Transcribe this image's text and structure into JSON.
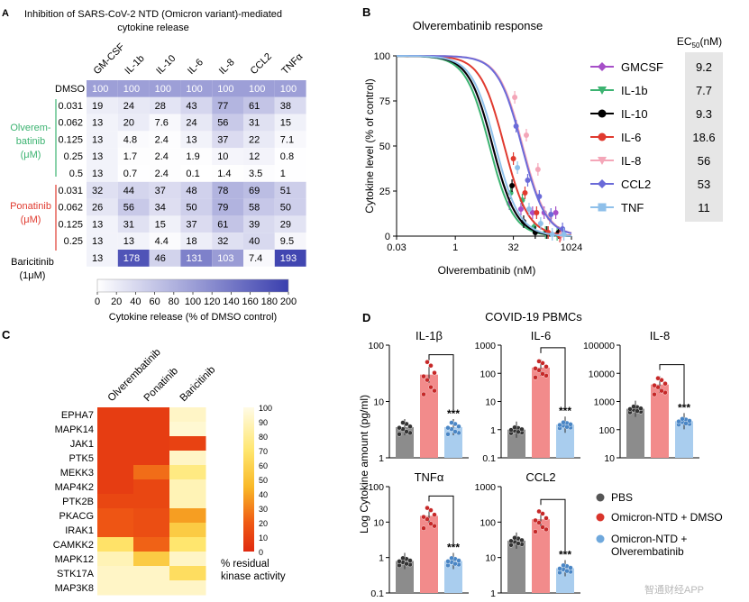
{
  "panels": {
    "A": {
      "letter": "A",
      "title_line1": "Inhibition of SARS-CoV-2 NTD (Omicron variant)-mediated",
      "title_line2": "cytokine release",
      "columns": [
        "GM-CSF",
        "IL-1b",
        "IL-10",
        "IL-6",
        "IL-8",
        "CCL2",
        "TNFα"
      ],
      "rows": [
        {
          "group": "DMSO",
          "conc": "",
          "values": [
            100,
            100,
            100,
            100,
            100,
            100,
            100
          ]
        },
        {
          "group": "Olverembatinib",
          "conc": "0.031",
          "values": [
            19,
            24,
            28,
            43,
            77,
            61,
            38
          ]
        },
        {
          "group": "Olverembatinib",
          "conc": "0.062",
          "values": [
            13,
            20,
            7.6,
            24,
            56,
            31,
            15
          ]
        },
        {
          "group": "Olverembatinib",
          "conc": "0.125",
          "values": [
            13,
            4.8,
            2.4,
            13,
            37,
            22,
            7.1
          ]
        },
        {
          "group": "Olverembatinib",
          "conc": "0.25",
          "values": [
            13,
            1.7,
            2.4,
            1.9,
            10,
            12,
            0.8
          ]
        },
        {
          "group": "Olverembatinib",
          "conc": "0.5",
          "values": [
            13,
            0.7,
            2.4,
            0.1,
            1.4,
            3.5,
            1.0
          ]
        },
        {
          "group": "Ponatinib",
          "conc": "0.031",
          "values": [
            32,
            44,
            37,
            48,
            78,
            69,
            51
          ]
        },
        {
          "group": "Ponatinib",
          "conc": "0.062",
          "values": [
            26,
            56,
            34,
            50,
            79,
            58,
            50
          ]
        },
        {
          "group": "Ponatinib",
          "conc": "0.125",
          "values": [
            13,
            31,
            15,
            37,
            61,
            39,
            29
          ]
        },
        {
          "group": "Ponatinib",
          "conc": "0.25",
          "values": [
            13,
            13,
            4.4,
            18,
            32,
            40,
            9.5
          ]
        },
        {
          "group": "Baricitinib",
          "conc": "",
          "values": [
            13,
            178,
            46,
            131,
            103,
            7.4,
            193
          ]
        }
      ],
      "row_labels": {
        "dmso": "DMSO",
        "olver_1": "Olverem-",
        "olver_2": "batinib",
        "olver_3": "(μM)",
        "pona_1": "Ponatinib",
        "pona_2": "(μM)",
        "bari_1": "Baricitinib",
        "bari_2": "(1μM)"
      },
      "colorbar": {
        "ticks": [
          "0",
          "20",
          "40",
          "60",
          "80",
          "100",
          "120",
          "140",
          "160",
          "180",
          "200"
        ],
        "label": "Cytokine release (% of DMSO control)"
      },
      "colors": {
        "olver": "#3cb371",
        "pona": "#e03a2f",
        "scale_max": "#3a3fae"
      }
    },
    "B": {
      "letter": "B",
      "title": "Olverembatinib response",
      "xlabel": "Olverembatinib (nM)",
      "ylabel": "Cytokine level (% of control)",
      "xticks": [
        "0.03",
        "1",
        "32",
        "1024"
      ],
      "yticks": [
        "0",
        "25",
        "50",
        "75",
        "100"
      ],
      "ec50_header": "EC50 (nM)",
      "ec50_main": "EC",
      "ec50_sub": "50",
      "ec50_unit": "(nM)"
    },
    "C": {
      "letter": "C",
      "columns": [
        "Olverembatinib",
        "Ponatinib",
        "Baricitinib"
      ],
      "rows": [
        "EPHA7",
        "MAPK14",
        "JAK1",
        "PTK5",
        "MEKK3",
        "MAP4K2",
        "PTK2B",
        "PKACG",
        "IRAK1",
        "CAMKK2",
        "MAPK12",
        "STK17A",
        "MAP3K8"
      ],
      "colorbar_ticks": [
        "100",
        "90",
        "80",
        "70",
        "60",
        "50",
        "40",
        "30",
        "20",
        "10",
        "0"
      ],
      "colorbar_label_1": "% residual",
      "colorbar_label_2": "kinase activity"
    },
    "D": {
      "letter": "D",
      "title": "COVID-19 PBMCs",
      "ylabel": "Log Cytokine amount (pg/ml)",
      "stars": "***",
      "legend": [
        {
          "label": "PBS",
          "color": "#555555"
        },
        {
          "label": "Omicron-NTD + DMSO",
          "color": "#d9342b"
        },
        {
          "label": "Omicron-NTD +",
          "label2": "Olverembatinib",
          "color": "#6fa8dc"
        }
      ],
      "subplots": [
        {
          "name": "IL-1β",
          "yticks": [
            "1",
            "10",
            "100"
          ]
        },
        {
          "name": "IL-6",
          "yticks": [
            "0.1",
            "1",
            "10",
            "100",
            "1000"
          ]
        },
        {
          "name": "IL-8",
          "yticks": [
            "10",
            "100",
            "1000",
            "10000",
            "100000"
          ]
        },
        {
          "name": "TNFα",
          "yticks": [
            "0.1",
            "1",
            "10",
            "100"
          ]
        },
        {
          "name": "CCL2",
          "yticks": [
            "1",
            "10",
            "100",
            "1000"
          ]
        }
      ]
    }
  },
  "watermark": "智通财经APP",
  "chart_data": [
    {
      "type": "heatmap",
      "panel": "A",
      "title": "Inhibition of SARS-CoV-2 NTD (Omicron variant)-mediated cytokine release",
      "x": [
        "GM-CSF",
        "IL-1b",
        "IL-10",
        "IL-6",
        "IL-8",
        "CCL2",
        "TNFα"
      ],
      "y": [
        "DMSO",
        "Olverembatinib 0.031",
        "Olverembatinib 0.062",
        "Olverembatinib 0.125",
        "Olverembatinib 0.25",
        "Olverembatinib 0.5",
        "Ponatinib 0.031",
        "Ponatinib 0.062",
        "Ponatinib 0.125",
        "Ponatinib 0.25",
        "Baricitinib 1μM"
      ],
      "values": [
        [
          100,
          100,
          100,
          100,
          100,
          100,
          100
        ],
        [
          19,
          24,
          28,
          43,
          77,
          61,
          38
        ],
        [
          13,
          20,
          7.6,
          24,
          56,
          31,
          15
        ],
        [
          13,
          4.8,
          2.4,
          13,
          37,
          22,
          7.1
        ],
        [
          13,
          1.7,
          2.4,
          1.9,
          10,
          12,
          0.8
        ],
        [
          13,
          0.7,
          2.4,
          0.1,
          1.4,
          3.5,
          1.0
        ],
        [
          32,
          44,
          37,
          48,
          78,
          69,
          51
        ],
        [
          26,
          56,
          34,
          50,
          79,
          58,
          50
        ],
        [
          13,
          31,
          15,
          37,
          61,
          39,
          29
        ],
        [
          13,
          13,
          4.4,
          18,
          32,
          40,
          9.5
        ],
        [
          13,
          178,
          46,
          131,
          103,
          7.4,
          193
        ]
      ],
      "scale": [
        0,
        200
      ]
    },
    {
      "type": "line",
      "panel": "B",
      "title": "Olverembatinib response",
      "xlabel": "Olverembatinib (nM)",
      "ylabel": "Cytokine level (% of control)",
      "xscale": "log2",
      "xlim": [
        0.03,
        1024
      ],
      "ylim": [
        0,
        100
      ],
      "series": [
        {
          "name": "GMCSF",
          "ec50": 9.2,
          "color": "#a64fc8",
          "points": [
            [
              32,
              18
            ],
            [
              64,
              15
            ],
            [
              128,
              13
            ],
            [
              256,
              13
            ],
            [
              512,
              13
            ]
          ]
        },
        {
          "name": "IL-1b",
          "ec50": 7.7,
          "color": "#3cb371",
          "points": [
            [
              32,
              24
            ],
            [
              64,
              20
            ],
            [
              128,
              5
            ],
            [
              256,
              2
            ],
            [
              512,
              1
            ]
          ]
        },
        {
          "name": "IL-10",
          "ec50": 9.3,
          "color": "#000000",
          "points": [
            [
              32,
              28
            ],
            [
              64,
              8
            ],
            [
              128,
              2
            ],
            [
              256,
              2
            ],
            [
              512,
              2
            ]
          ]
        },
        {
          "name": "IL-6",
          "ec50": 18.6,
          "color": "#e03a2f",
          "points": [
            [
              32,
              43
            ],
            [
              64,
              24
            ],
            [
              128,
              13
            ],
            [
              256,
              2
            ],
            [
              512,
              0
            ]
          ]
        },
        {
          "name": "IL-8",
          "ec50": 56,
          "color": "#f4a6b8",
          "points": [
            [
              32,
              77
            ],
            [
              64,
              56
            ],
            [
              128,
              37
            ],
            [
              256,
              10
            ],
            [
              512,
              1
            ]
          ]
        },
        {
          "name": "CCL2",
          "ec50": 53,
          "color": "#6a6ad8",
          "points": [
            [
              32,
              61
            ],
            [
              64,
              31
            ],
            [
              128,
              22
            ],
            [
              256,
              12
            ],
            [
              512,
              4
            ]
          ]
        },
        {
          "name": "TNF",
          "ec50": 11,
          "color": "#8fc0ea",
          "points": [
            [
              32,
              38
            ],
            [
              64,
              15
            ],
            [
              128,
              7
            ],
            [
              256,
              1
            ],
            [
              512,
              1
            ]
          ]
        }
      ]
    },
    {
      "type": "heatmap",
      "panel": "C",
      "x": [
        "Olverembatinib",
        "Ponatinib",
        "Baricitinib"
      ],
      "y": [
        "EPHA7",
        "MAPK14",
        "JAK1",
        "PTK5",
        "MEKK3",
        "MAP4K2",
        "PTK2B",
        "PKACG",
        "IRAK1",
        "CAMKK2",
        "MAPK12",
        "STK17A",
        "MAP3K8"
      ],
      "values": [
        [
          8,
          8,
          92
        ],
        [
          8,
          8,
          95
        ],
        [
          8,
          8,
          10
        ],
        [
          8,
          8,
          92
        ],
        [
          8,
          25,
          75
        ],
        [
          8,
          12,
          88
        ],
        [
          12,
          12,
          88
        ],
        [
          18,
          15,
          38
        ],
        [
          18,
          15,
          55
        ],
        [
          68,
          22,
          70
        ],
        [
          88,
          55,
          92
        ],
        [
          92,
          92,
          65
        ],
        [
          92,
          92,
          92
        ]
      ],
      "scale": [
        0,
        100
      ],
      "label": "% residual kinase activity"
    },
    {
      "type": "bar",
      "panel": "D",
      "title": "COVID-19 PBMCs",
      "ylabel": "Log Cytokine amount (pg/ml)",
      "yscale": "log",
      "categories": [
        "PBS",
        "Omicron-NTD + DMSO",
        "Omicron-NTD + Olverembatinib"
      ],
      "subplots": [
        {
          "name": "IL-1β",
          "ylim": [
            1,
            100
          ],
          "values": [
            3.5,
            30,
            3.5
          ]
        },
        {
          "name": "IL-6",
          "ylim": [
            0.1,
            1000
          ],
          "values": [
            1,
            160,
            1.5
          ]
        },
        {
          "name": "IL-8",
          "ylim": [
            10,
            100000
          ],
          "values": [
            550,
            4000,
            200
          ]
        },
        {
          "name": "TNFα",
          "ylim": [
            0.1,
            100
          ],
          "values": [
            0.8,
            15,
            0.8
          ]
        },
        {
          "name": "CCL2",
          "ylim": [
            1,
            1000
          ],
          "values": [
            30,
            120,
            5
          ]
        }
      ]
    }
  ]
}
